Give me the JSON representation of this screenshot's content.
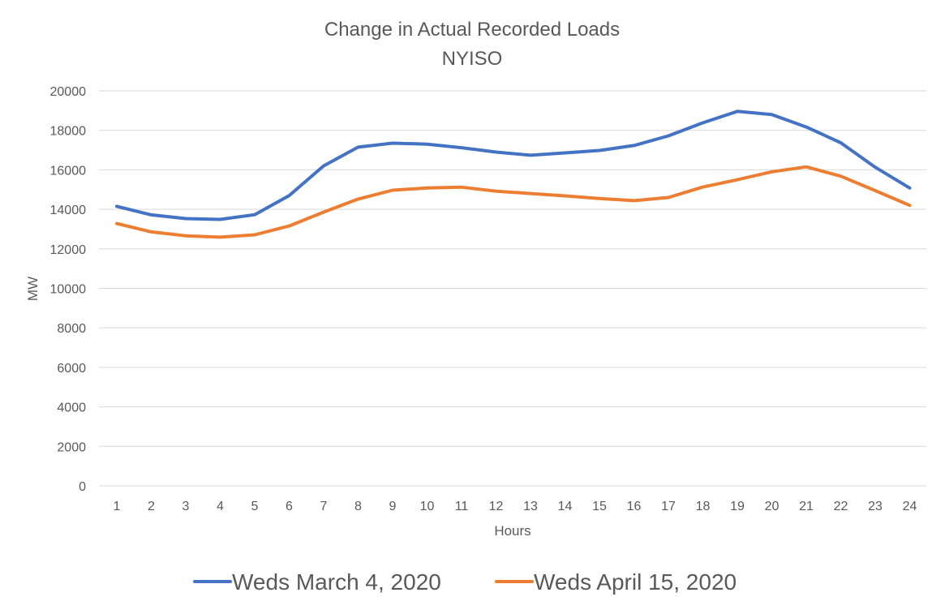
{
  "chart_data": {
    "type": "line",
    "title": "Change in Actual Recorded Loads",
    "subtitle": "NYISO",
    "xlabel": "Hours",
    "ylabel": "MW",
    "ylim": [
      0,
      20000
    ],
    "yticks": [
      0,
      2000,
      4000,
      6000,
      8000,
      10000,
      12000,
      14000,
      16000,
      18000,
      20000
    ],
    "categories": [
      "1",
      "2",
      "3",
      "4",
      "5",
      "6",
      "7",
      "8",
      "9",
      "10",
      "11",
      "12",
      "13",
      "14",
      "15",
      "16",
      "17",
      "18",
      "19",
      "20",
      "21",
      "22",
      "23",
      "24"
    ],
    "grid": true,
    "legend_position": "bottom",
    "series": [
      {
        "name": "Weds March 4, 2020",
        "color": "#4472C4",
        "values": [
          14150,
          13720,
          13530,
          13490,
          13730,
          14700,
          16200,
          17150,
          17350,
          17300,
          17120,
          16900,
          16740,
          16860,
          16980,
          17230,
          17720,
          18380,
          18960,
          18800,
          18170,
          17370,
          16130,
          15080
        ]
      },
      {
        "name": "Weds April 15, 2020",
        "color": "#ED7D31",
        "values": [
          13280,
          12860,
          12660,
          12590,
          12710,
          13160,
          13860,
          14520,
          14970,
          15080,
          15120,
          14920,
          14800,
          14680,
          14550,
          14440,
          14600,
          15130,
          15500,
          15900,
          16150,
          15680,
          14950,
          14200
        ]
      }
    ]
  }
}
